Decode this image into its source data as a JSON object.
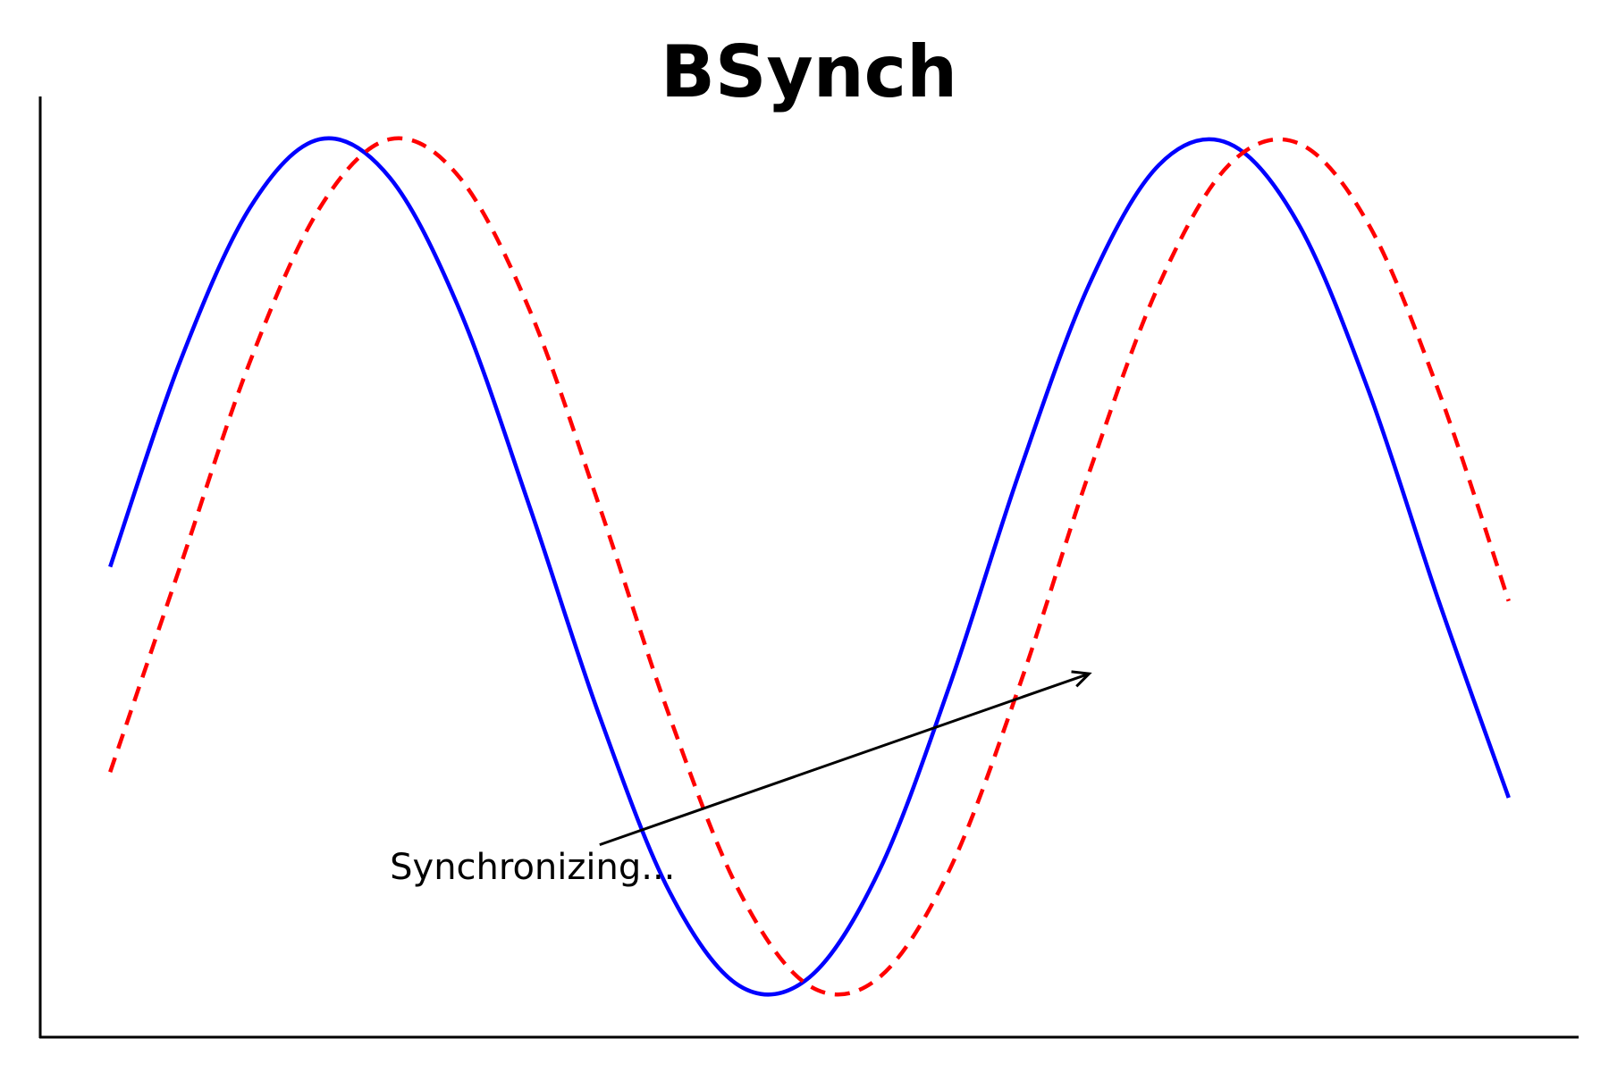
{
  "chart_data": {
    "type": "line",
    "title": "BSynch",
    "xlabel": "",
    "ylabel": "",
    "xlim": [
      -0.5,
      10.5
    ],
    "ylim": [
      -1.1,
      1.1
    ],
    "grid": false,
    "x_range": [
      0,
      10
    ],
    "series": [
      {
        "color": "#0000ff",
        "line_style": "solid",
        "x": [
          0,
          0.5,
          1,
          1.5,
          2,
          2.5,
          3,
          3.5,
          4,
          4.5,
          5,
          5.5,
          6,
          6.5,
          7,
          7.5,
          8,
          8.5,
          9,
          9.5,
          10
        ],
        "y": [
          0.0,
          0.48,
          0.84,
          1.0,
          0.91,
          0.6,
          0.14,
          -0.35,
          -0.76,
          -0.98,
          -0.96,
          -0.71,
          -0.28,
          0.22,
          0.66,
          0.94,
          0.99,
          0.8,
          0.41,
          -0.08,
          -0.54
        ]
      },
      {
        "color": "#ff0000",
        "line_style": "dashed",
        "x": [
          0,
          0.5,
          1,
          1.5,
          2,
          2.5,
          3,
          3.5,
          4,
          4.5,
          5,
          5.5,
          6,
          6.5,
          7,
          7.5,
          8,
          8.5,
          9,
          9.5,
          10
        ],
        "y": [
          -0.48,
          0.0,
          0.48,
          0.84,
          1.0,
          0.91,
          0.6,
          0.14,
          -0.35,
          -0.76,
          -0.98,
          -0.96,
          -0.71,
          -0.28,
          0.22,
          0.66,
          0.94,
          0.99,
          0.8,
          0.41,
          -0.08
        ]
      }
    ],
    "annotations": [
      {
        "text": "Synchronizing...",
        "text_x": 2,
        "text_y": -0.73,
        "arrow_start_x": 3.5,
        "arrow_start_y": -0.65,
        "arrow_end_x": 7,
        "arrow_end_y": -0.25
      }
    ]
  }
}
